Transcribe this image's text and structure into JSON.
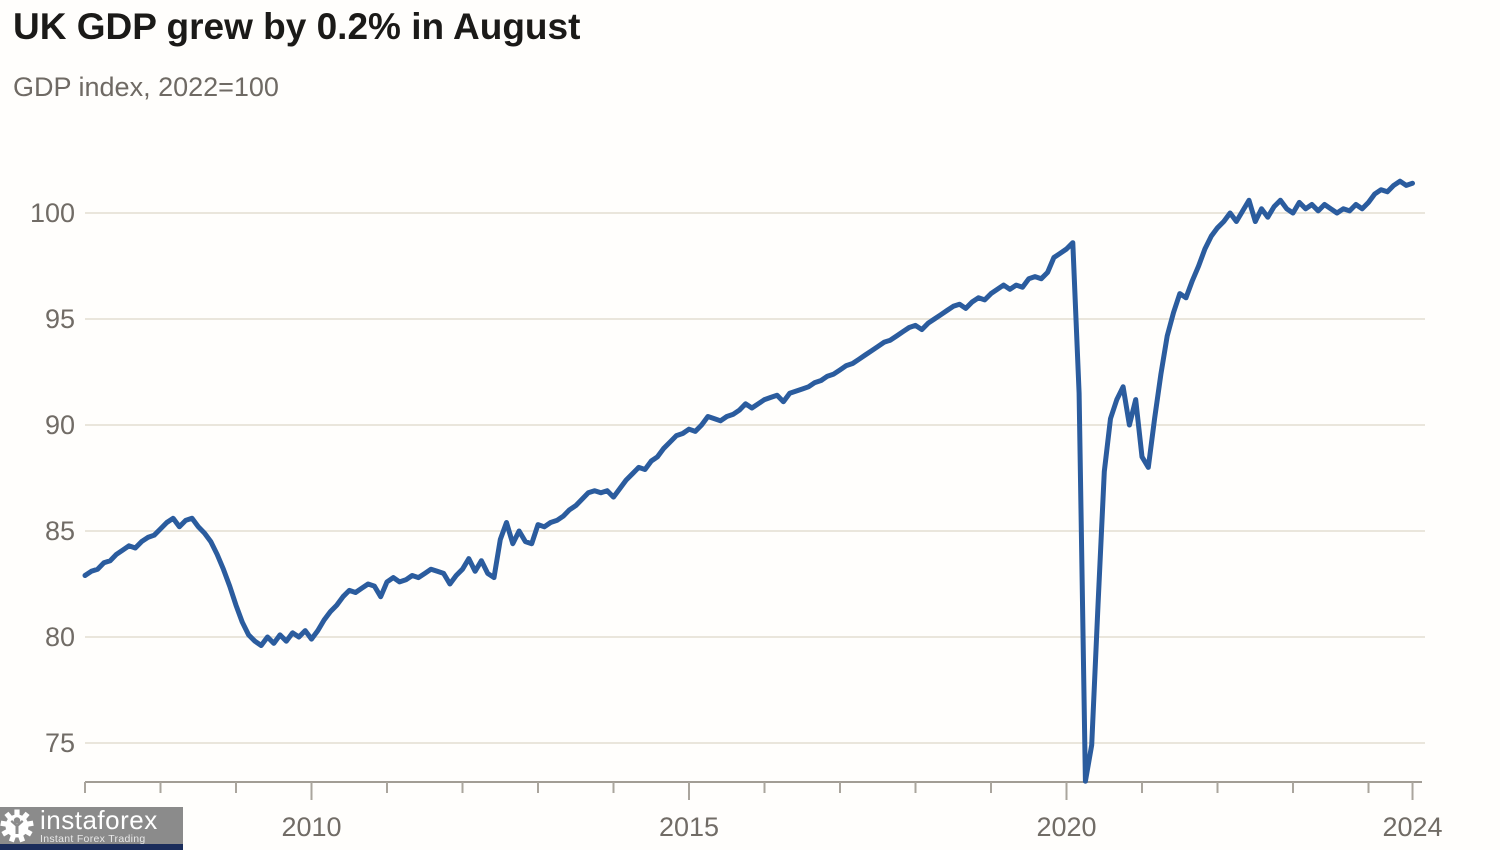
{
  "header": {
    "title": "UK GDP grew by 0.2% in August",
    "subtitle": "GDP index, 2022=100"
  },
  "logo": {
    "brand": "instaforex",
    "tagline": "Instant Forex Trading",
    "bg_color": "#8b8b8b",
    "bar_color": "#1b2d5b"
  },
  "colors": {
    "line": "#2b5c9e",
    "gridline": "#eae6dc",
    "axis": "#a29d95",
    "tick": "#aaa59d",
    "tick_label": "#716c66"
  },
  "chart_data": {
    "type": "line",
    "title": "UK GDP grew by 0.2% in August",
    "subtitle": "GDP index, 2022=100",
    "xlabel": "",
    "ylabel": "",
    "grid": "horizontal",
    "legend_position": "none",
    "ylim": [
      73.2,
      102.3
    ],
    "yticks": [
      75,
      80,
      85,
      90,
      95,
      100
    ],
    "xticks_minor_years": [
      2007,
      2008,
      2009,
      2010,
      2011,
      2012,
      2013,
      2014,
      2015,
      2016,
      2017,
      2018,
      2019,
      2020,
      2021,
      2022,
      2023,
      2024
    ],
    "xticks_labeled": [
      {
        "label": "2010",
        "year": 2010
      },
      {
        "label": "2015",
        "year": 2015
      },
      {
        "label": "2020",
        "year": 2020
      },
      {
        "label": "2024",
        "year": 2024.583
      }
    ],
    "series": [
      {
        "name": "UK monthly GDP index (2022=100)",
        "start_year": 2007,
        "frequency": "monthly",
        "end_label": "Aug 2024",
        "values": [
          82.9,
          83.1,
          83.2,
          83.5,
          83.6,
          83.9,
          84.1,
          84.3,
          84.2,
          84.5,
          84.7,
          84.8,
          85.1,
          85.4,
          85.6,
          85.2,
          85.5,
          85.6,
          85.2,
          84.9,
          84.5,
          83.9,
          83.2,
          82.4,
          81.5,
          80.7,
          80.1,
          79.8,
          79.6,
          80.0,
          79.7,
          80.1,
          79.8,
          80.2,
          80.0,
          80.3,
          79.9,
          80.3,
          80.8,
          81.2,
          81.5,
          81.9,
          82.2,
          82.1,
          82.3,
          82.5,
          82.4,
          81.9,
          82.6,
          82.8,
          82.6,
          82.7,
          82.9,
          82.8,
          83.0,
          83.2,
          83.1,
          83.0,
          82.5,
          82.9,
          83.2,
          83.7,
          83.1,
          83.6,
          83.0,
          82.8,
          84.6,
          85.4,
          84.4,
          85.0,
          84.5,
          84.4,
          85.3,
          85.2,
          85.4,
          85.5,
          85.7,
          86.0,
          86.2,
          86.5,
          86.8,
          86.9,
          86.8,
          86.9,
          86.6,
          87.0,
          87.4,
          87.7,
          88.0,
          87.9,
          88.3,
          88.5,
          88.9,
          89.2,
          89.5,
          89.6,
          89.8,
          89.7,
          90.0,
          90.4,
          90.3,
          90.2,
          90.4,
          90.5,
          90.7,
          91.0,
          90.8,
          91.0,
          91.2,
          91.3,
          91.4,
          91.1,
          91.5,
          91.6,
          91.7,
          91.8,
          92.0,
          92.1,
          92.3,
          92.4,
          92.6,
          92.8,
          92.9,
          93.1,
          93.3,
          93.5,
          93.7,
          93.9,
          94.0,
          94.2,
          94.4,
          94.6,
          94.7,
          94.5,
          94.8,
          95.0,
          95.2,
          95.4,
          95.6,
          95.7,
          95.5,
          95.8,
          96.0,
          95.9,
          96.2,
          96.4,
          96.6,
          96.4,
          96.6,
          96.5,
          96.9,
          97.0,
          96.9,
          97.2,
          97.9,
          98.1,
          98.3,
          98.6,
          91.5,
          73.2,
          74.9,
          81.5,
          87.8,
          90.3,
          91.2,
          91.8,
          90.0,
          91.2,
          88.5,
          88.0,
          90.3,
          92.4,
          94.2,
          95.3,
          96.2,
          96.0,
          96.8,
          97.5,
          98.3,
          98.9,
          99.3,
          99.6,
          100.0,
          99.6,
          100.1,
          100.6,
          99.6,
          100.2,
          99.8,
          100.3,
          100.6,
          100.2,
          100.0,
          100.5,
          100.2,
          100.4,
          100.1,
          100.4,
          100.2,
          100.0,
          100.2,
          100.1,
          100.4,
          100.2,
          100.5,
          100.9,
          101.1,
          101.0,
          101.3,
          101.5,
          101.3,
          101.4
        ]
      }
    ]
  }
}
